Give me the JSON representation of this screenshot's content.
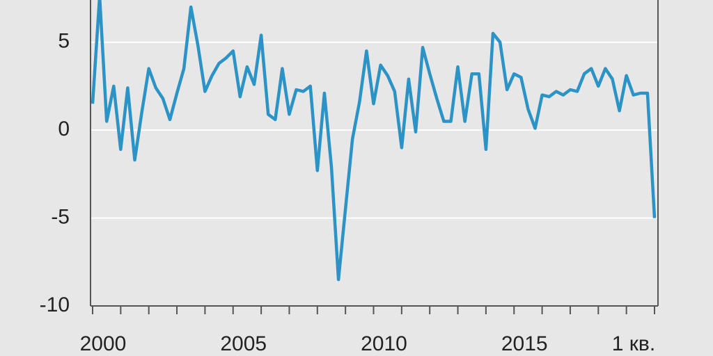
{
  "chart_data": {
    "type": "line",
    "categories": [
      "2000",
      null,
      null,
      null,
      null,
      null,
      null,
      null,
      null,
      null,
      null,
      null,
      null,
      null,
      null,
      null,
      null,
      null,
      null,
      null,
      "2005",
      null,
      null,
      null,
      null,
      null,
      null,
      null,
      null,
      null,
      null,
      null,
      null,
      null,
      null,
      null,
      null,
      null,
      null,
      null,
      "2010",
      null,
      null,
      null,
      null,
      null,
      null,
      null,
      null,
      null,
      null,
      null,
      null,
      null,
      null,
      null,
      null,
      null,
      null,
      null,
      "2015",
      null,
      null,
      null,
      null,
      null,
      null,
      null,
      null,
      null,
      null,
      null,
      null,
      null,
      null,
      null,
      null,
      null,
      null,
      null,
      "1 кв."
    ],
    "series": [
      {
        "color": "#2b93c6",
        "values": [
          1.5,
          7.6,
          0.5,
          2.5,
          -1.1,
          2.4,
          -1.7,
          1.0,
          3.5,
          2.4,
          1.8,
          0.6,
          2.1,
          3.5,
          7.0,
          4.8,
          2.2,
          3.1,
          3.8,
          4.1,
          4.5,
          1.9,
          3.6,
          2.6,
          5.4,
          0.9,
          0.6,
          3.5,
          0.9,
          2.3,
          2.2,
          2.5,
          -2.3,
          2.1,
          -2.1,
          -8.5,
          -4.5,
          -0.5,
          1.6,
          4.5,
          1.5,
          3.7,
          3.1,
          2.2,
          -1.0,
          2.9,
          -0.1,
          4.7,
          3.2,
          1.8,
          0.5,
          0.5,
          3.6,
          0.5,
          3.2,
          3.2,
          -1.1,
          5.5,
          5.0,
          2.3,
          3.2,
          3.0,
          1.2,
          0.1,
          2.0,
          1.9,
          2.2,
          2.0,
          2.3,
          2.2,
          3.2,
          3.5,
          2.5,
          3.5,
          2.9,
          1.1,
          3.1,
          2.0,
          2.1,
          2.1,
          -5.0
        ]
      }
    ],
    "ylim": [
      -10,
      7.4
    ],
    "yticks": [
      -10,
      -5,
      0,
      5
    ],
    "grid": true
  }
}
